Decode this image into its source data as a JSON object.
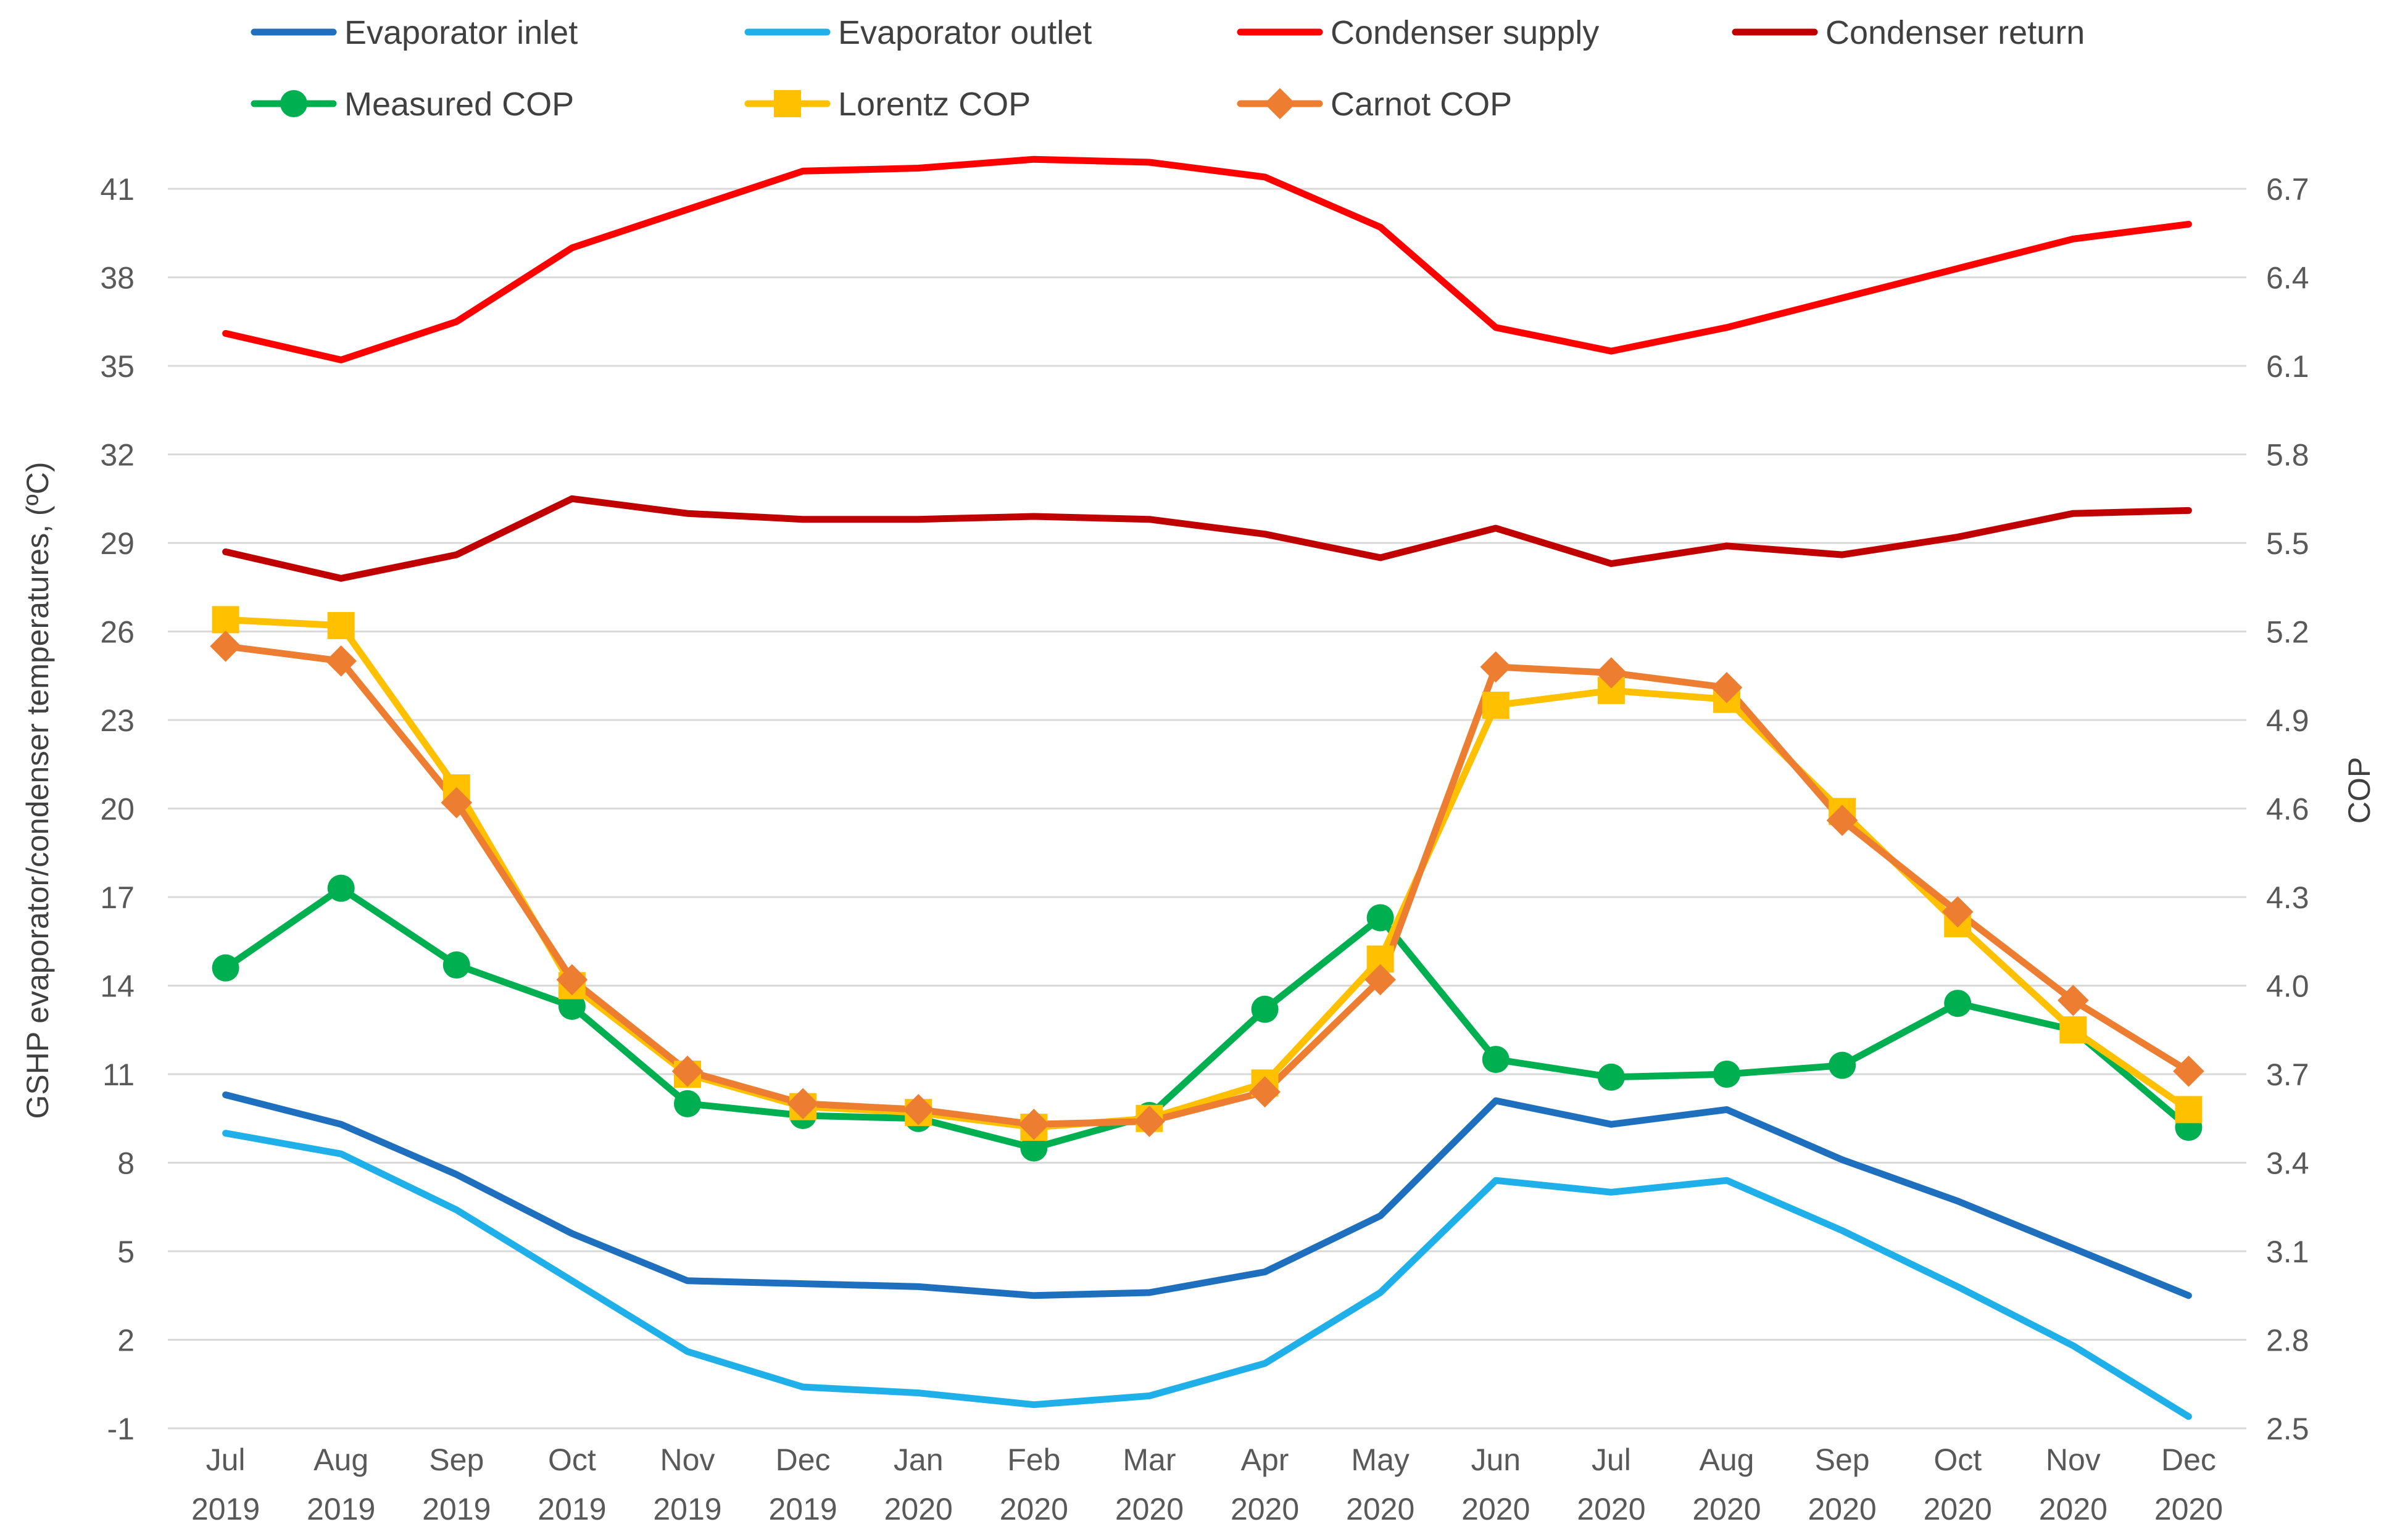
{
  "chart_data": {
    "type": "line",
    "title": "",
    "xlabel": "",
    "ylabel_left": "GSHP evaporator/condenser temperatures, (ºC)",
    "ylabel_right": "COP",
    "categories": [
      [
        "Jul",
        "2019"
      ],
      [
        "Aug",
        "2019"
      ],
      [
        "Sep",
        "2019"
      ],
      [
        "Oct",
        "2019"
      ],
      [
        "Nov",
        "2019"
      ],
      [
        "Dec",
        "2019"
      ],
      [
        "Jan",
        "2020"
      ],
      [
        "Feb",
        "2020"
      ],
      [
        "Mar",
        "2020"
      ],
      [
        "Apr",
        "2020"
      ],
      [
        "May",
        "2020"
      ],
      [
        "Jun",
        "2020"
      ],
      [
        "Jul",
        "2020"
      ],
      [
        "Aug",
        "2020"
      ],
      [
        "Sep",
        "2020"
      ],
      [
        "Oct",
        "2020"
      ],
      [
        "Nov",
        "2020"
      ],
      [
        "Dec",
        "2020"
      ]
    ],
    "ylim_left": [
      -1,
      41
    ],
    "yticks_left": [
      "41",
      "38",
      "35",
      "32",
      "29",
      "26",
      "23",
      "20",
      "17",
      "14",
      "11",
      "8",
      "5",
      "2",
      "-1"
    ],
    "ylim_right": [
      2.5,
      6.7
    ],
    "yticks_right": [
      "6.7",
      "6.4",
      "6.1",
      "5.8",
      "5.5",
      "5.2",
      "4.9",
      "4.6",
      "4.3",
      "4.0",
      "3.7",
      "3.4",
      "3.1",
      "2.8",
      "2.5"
    ],
    "grid": true,
    "legend_position": "top",
    "series": [
      {
        "name": "Evaporator inlet",
        "axis": "left",
        "color": "#1f6fbf",
        "marker": "none",
        "values": [
          10.3,
          9.3,
          7.6,
          5.6,
          4.0,
          3.9,
          3.8,
          3.5,
          3.6,
          4.3,
          6.2,
          10.1,
          9.3,
          9.8,
          8.1,
          6.7,
          5.1,
          3.5
        ]
      },
      {
        "name": "Evaporator outlet",
        "axis": "left",
        "color": "#1fb0ea",
        "marker": "none",
        "values": [
          9.0,
          8.3,
          6.4,
          4.0,
          1.6,
          0.4,
          0.2,
          -0.2,
          0.1,
          1.2,
          3.6,
          7.4,
          7.0,
          7.4,
          5.7,
          3.8,
          1.8,
          -0.6
        ]
      },
      {
        "name": "Condenser supply",
        "axis": "left",
        "color": "#ff0000",
        "marker": "none",
        "values": [
          36.1,
          35.2,
          36.5,
          39.0,
          40.3,
          41.6,
          41.7,
          42.0,
          41.9,
          41.4,
          39.7,
          36.3,
          35.5,
          36.3,
          37.3,
          38.3,
          39.3,
          39.8
        ]
      },
      {
        "name": "Condenser return",
        "axis": "left",
        "color": "#c00000",
        "marker": "none",
        "values": [
          28.7,
          27.8,
          28.6,
          30.5,
          30.0,
          29.8,
          29.8,
          29.9,
          29.8,
          29.3,
          28.5,
          29.5,
          28.3,
          28.9,
          28.6,
          29.2,
          30.0,
          30.1
        ]
      },
      {
        "name": "Measured COP",
        "axis": "right",
        "color": "#00b050",
        "marker": "circle",
        "values": [
          4.06,
          4.33,
          4.07,
          3.93,
          3.6,
          3.56,
          3.55,
          3.45,
          3.56,
          3.92,
          4.23,
          3.75,
          3.69,
          3.7,
          3.73,
          3.94,
          3.85,
          3.52
        ]
      },
      {
        "name": "Lorentz COP",
        "axis": "right",
        "color": "#ffc000",
        "marker": "square",
        "values": [
          5.24,
          5.22,
          4.67,
          4.0,
          3.7,
          3.59,
          3.57,
          3.52,
          3.55,
          3.67,
          4.09,
          4.95,
          5.0,
          4.97,
          4.59,
          4.21,
          3.85,
          3.58
        ]
      },
      {
        "name": "Carnot COP",
        "axis": "right",
        "color": "#ed7d31",
        "marker": "diamond",
        "values": [
          5.15,
          5.1,
          4.62,
          4.02,
          3.71,
          3.6,
          3.58,
          3.53,
          3.54,
          3.64,
          4.02,
          5.08,
          5.06,
          5.01,
          4.56,
          4.25,
          3.95,
          3.71
        ]
      }
    ]
  }
}
